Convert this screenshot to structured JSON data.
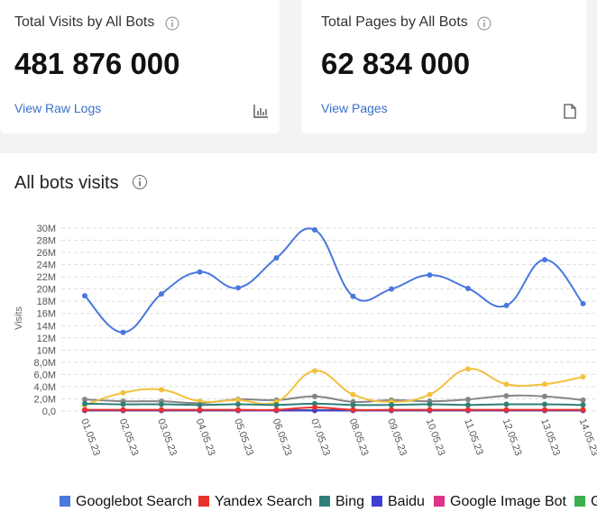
{
  "cards": [
    {
      "title": "Total Visits by All Bots",
      "value": "481 876 000",
      "link": "View Raw Logs"
    },
    {
      "title": "Total Pages by All Bots",
      "value": "62 834 000",
      "link": "View Pages"
    }
  ],
  "section_title": "All bots visits",
  "chart_data": {
    "type": "line",
    "y_label": "Visits",
    "categories": [
      "01.05.23",
      "02.05.23",
      "03.05.23",
      "04.05.23",
      "05.05.23",
      "06.05.23",
      "07.05.23",
      "08.05.23",
      "09.05.23",
      "10.05.23",
      "11.05.23",
      "12.05.23",
      "13.05.23",
      "14.05.23"
    ],
    "ylim": [
      0,
      30000000
    ],
    "yticks": [
      {
        "value": 0,
        "label": "0,0"
      },
      {
        "value": 2000000,
        "label": "2,0M"
      },
      {
        "value": 4000000,
        "label": "4,0M"
      },
      {
        "value": 6000000,
        "label": "6,0M"
      },
      {
        "value": 8000000,
        "label": "8,0M"
      },
      {
        "value": 10000000,
        "label": "10M"
      },
      {
        "value": 12000000,
        "label": "12M"
      },
      {
        "value": 14000000,
        "label": "14M"
      },
      {
        "value": 16000000,
        "label": "16M"
      },
      {
        "value": 18000000,
        "label": "18M"
      },
      {
        "value": 20000000,
        "label": "20M"
      },
      {
        "value": 22000000,
        "label": "22M"
      },
      {
        "value": 24000000,
        "label": "24M"
      },
      {
        "value": 26000000,
        "label": "26M"
      },
      {
        "value": 28000000,
        "label": "28M"
      },
      {
        "value": 30000000,
        "label": "30M"
      }
    ],
    "grid": true,
    "series": [
      {
        "name": "Googlebot Search",
        "color": "#4a78dc",
        "values": [
          18900000,
          12900000,
          19200000,
          22800000,
          20200000,
          25100000,
          29700000,
          18800000,
          20000000,
          22300000,
          20100000,
          17300000,
          24800000,
          17600000
        ]
      },
      {
        "name": "Yandex Search",
        "color": "#e8322c",
        "values": [
          200000,
          200000,
          200000,
          200000,
          200000,
          200000,
          600000,
          200000,
          200000,
          200000,
          200000,
          200000,
          200000,
          200000
        ]
      },
      {
        "name": "Bing",
        "color": "#2f7f7a",
        "values": [
          1200000,
          1100000,
          1100000,
          1000000,
          1100000,
          1000000,
          1200000,
          1000000,
          1000000,
          1100000,
          1000000,
          1100000,
          1100000,
          1000000
        ]
      },
      {
        "name": "Baidu",
        "color": "#3f3fd1",
        "values": [
          100000,
          100000,
          100000,
          100000,
          100000,
          100000,
          100000,
          100000,
          100000,
          100000,
          100000,
          100000,
          100000,
          100000
        ]
      },
      {
        "name": "Google Image Bot",
        "color": "#e0338a",
        "values": [
          100000,
          100000,
          100000,
          100000,
          100000,
          100000,
          100000,
          100000,
          100000,
          100000,
          100000,
          100000,
          100000,
          100000
        ]
      },
      {
        "name": "G",
        "color": "#3cae4f",
        "values": [
          150000,
          150000,
          150000,
          150000,
          150000,
          150000,
          150000,
          150000,
          150000,
          150000,
          150000,
          150000,
          150000,
          150000
        ]
      },
      {
        "color": "#f2c13d",
        "values": [
          1000000,
          3000000,
          3500000,
          1600000,
          1800000,
          1500000,
          6600000,
          2700000,
          1500000,
          2700000,
          6900000,
          4400000,
          4400000,
          5600000
        ]
      },
      {
        "color": "#858585",
        "values": [
          1900000,
          1600000,
          1600000,
          1300000,
          1900000,
          1800000,
          2400000,
          1500000,
          1800000,
          1600000,
          1900000,
          2500000,
          2400000,
          1800000
        ]
      }
    ]
  }
}
